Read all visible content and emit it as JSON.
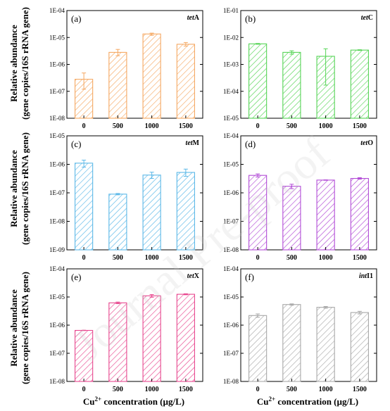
{
  "figure": {
    "ylabel_line1": "Relative abundance",
    "ylabel_line2": "(gene copies/16S rRNA gene)",
    "xlabel_pre": "Cu",
    "xlabel_sup": "2+",
    "xlabel_post": " concentration (µg/L)",
    "watermark": "Journal Pre-proof"
  },
  "chart_data": [
    {
      "type": "bar",
      "panel": "(a)",
      "gene_italic": "tet",
      "gene_suffix": "A",
      "color": "#F5A862",
      "scale": "log",
      "categories": [
        "0",
        "500",
        "1000",
        "1500"
      ],
      "values": [
        2.8e-07,
        2.8e-06,
        1.35e-05,
        5.6e-06
      ],
      "err_low": [
        1.2e-07,
        2.1e-06,
        1.2e-05,
        4.8e-06
      ],
      "err_high": [
        4.8e-07,
        3.6e-06,
        1.45e-05,
        6.5e-06
      ],
      "ylim": [
        1e-08,
        0.0001
      ],
      "yticks": [
        "1E-08",
        "1E-07",
        "1E-06",
        "1E-05",
        "1E-04"
      ]
    },
    {
      "type": "bar",
      "panel": "(b)",
      "gene_italic": "tet",
      "gene_suffix": "C",
      "color": "#55D455",
      "scale": "log",
      "categories": [
        "0",
        "500",
        "1000",
        "1500"
      ],
      "values": [
        0.0058,
        0.0028,
        0.002,
        0.0034
      ],
      "err_low": [
        0.0056,
        0.0024,
        0.00017,
        0.0033
      ],
      "err_high": [
        0.006,
        0.0032,
        0.0038,
        0.0035
      ],
      "ylim": [
        1e-05,
        0.1
      ],
      "yticks": [
        "1E-05",
        "1E-04",
        "1E-03",
        "1E-02",
        "1E-01"
      ]
    },
    {
      "type": "bar",
      "panel": "(c)",
      "gene_italic": "tet",
      "gene_suffix": "M",
      "color": "#5BB8E8",
      "scale": "log",
      "categories": [
        "0",
        "500",
        "1000",
        "1500"
      ],
      "values": [
        1.1e-06,
        9e-08,
        4.2e-07,
        5.2e-07
      ],
      "err_low": [
        8e-07,
        8.5e-08,
        3.2e-07,
        3.8e-07
      ],
      "err_high": [
        1.4e-06,
        9.5e-08,
        5.3e-07,
        6.8e-07
      ],
      "ylim": [
        1e-09,
        1e-05
      ],
      "yticks": [
        "1E-09",
        "1E-08",
        "1E-07",
        "1E-06",
        "1E-05"
      ]
    },
    {
      "type": "bar",
      "panel": "(d)",
      "gene_italic": "tet",
      "gene_suffix": "O",
      "color": "#B24BD6",
      "scale": "log",
      "categories": [
        "0",
        "500",
        "1000",
        "1500"
      ],
      "values": [
        4.1e-06,
        1.7e-06,
        2.8e-06,
        3.2e-06
      ],
      "err_low": [
        3.6e-06,
        1.4e-06,
        2.75e-06,
        3e-06
      ],
      "err_high": [
        4.6e-06,
        2e-06,
        2.85e-06,
        3.4e-06
      ],
      "ylim": [
        1e-08,
        0.0001
      ],
      "yticks": [
        "1E-08",
        "1E-07",
        "1E-06",
        "1E-05",
        "1E-04"
      ]
    },
    {
      "type": "bar",
      "panel": "(e)",
      "gene_italic": "tet",
      "gene_suffix": "X",
      "color": "#E8478F",
      "scale": "log",
      "categories": [
        "0",
        "500",
        "1000",
        "1500"
      ],
      "values": [
        6.5e-07,
        6.2e-06,
        1.1e-05,
        1.25e-05
      ],
      "err_low": [
        6.4e-07,
        5.8e-06,
        9.8e-06,
        1.2e-05
      ],
      "err_high": [
        6.6e-07,
        6.6e-06,
        1.22e-05,
        1.3e-05
      ],
      "ylim": [
        1e-08,
        0.0001
      ],
      "yticks": [
        "1E-08",
        "1E-07",
        "1E-06",
        "1E-05",
        "1E-04"
      ]
    },
    {
      "type": "bar",
      "panel": "(f)",
      "gene_italic": "int",
      "gene_suffix": "I1",
      "color": "#A8A8A8",
      "scale": "log",
      "categories": [
        "0",
        "500",
        "1000",
        "1500"
      ],
      "values": [
        2.2e-06,
        5.4e-06,
        4.3e-06,
        2.8e-06
      ],
      "err_low": [
        1.9e-06,
        5.1e-06,
        4e-06,
        2.5e-06
      ],
      "err_high": [
        2.5e-06,
        5.7e-06,
        4.6e-06,
        3.1e-06
      ],
      "ylim": [
        1e-08,
        0.0001
      ],
      "yticks": [
        "1E-08",
        "1E-07",
        "1E-06",
        "1E-05",
        "1E-04"
      ]
    }
  ]
}
